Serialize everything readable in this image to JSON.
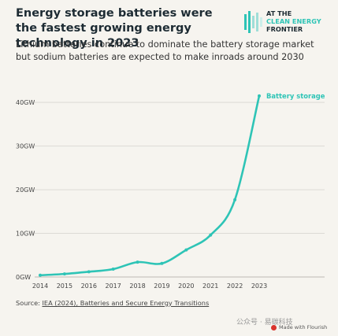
{
  "header": {
    "title": "Energy storage batteries were the fastest growing energy technology in 2023",
    "subtitle": "Lithium batteries continue to dominate the battery storage market but sodium batteries are expected to make inroads around 2030"
  },
  "logo": {
    "line1": "AT THE",
    "line2": "CLEAN ENERGY",
    "line3": "FRONTIER"
  },
  "source": {
    "prefix": "Source: ",
    "link_text": "IEA (2024), Batteries and Secure Energy Transitions"
  },
  "watermark": {
    "text": "公众号 · 易碳科技"
  },
  "flourish": {
    "text": "Made with Flourish"
  },
  "colors": {
    "line": "#2ec4b6",
    "grid": "#dcdad5",
    "background": "#f6f4ef",
    "logo_accent": "#2ec4b6"
  },
  "chart_data": {
    "type": "line",
    "x": [
      2014,
      2015,
      2016,
      2017,
      2018,
      2019,
      2020,
      2021,
      2022,
      2023
    ],
    "series": [
      {
        "name": "Battery storage",
        "values": [
          0.4,
          0.7,
          1.2,
          1.8,
          3.4,
          3.1,
          6.2,
          9.6,
          17.7,
          41.5
        ]
      }
    ],
    "y_ticks": [
      0,
      10,
      20,
      30,
      40
    ],
    "y_tick_labels": [
      "0GW",
      "10GW",
      "20GW",
      "30GW",
      "40GW"
    ],
    "x_tick_labels": [
      "2014",
      "2015",
      "2016",
      "2017",
      "2018",
      "2019",
      "2020",
      "2021",
      "2022",
      "2023"
    ],
    "ylim": [
      0,
      44
    ],
    "xlabel": "",
    "ylabel": "",
    "grid": true,
    "legend": "direct label at line end"
  }
}
